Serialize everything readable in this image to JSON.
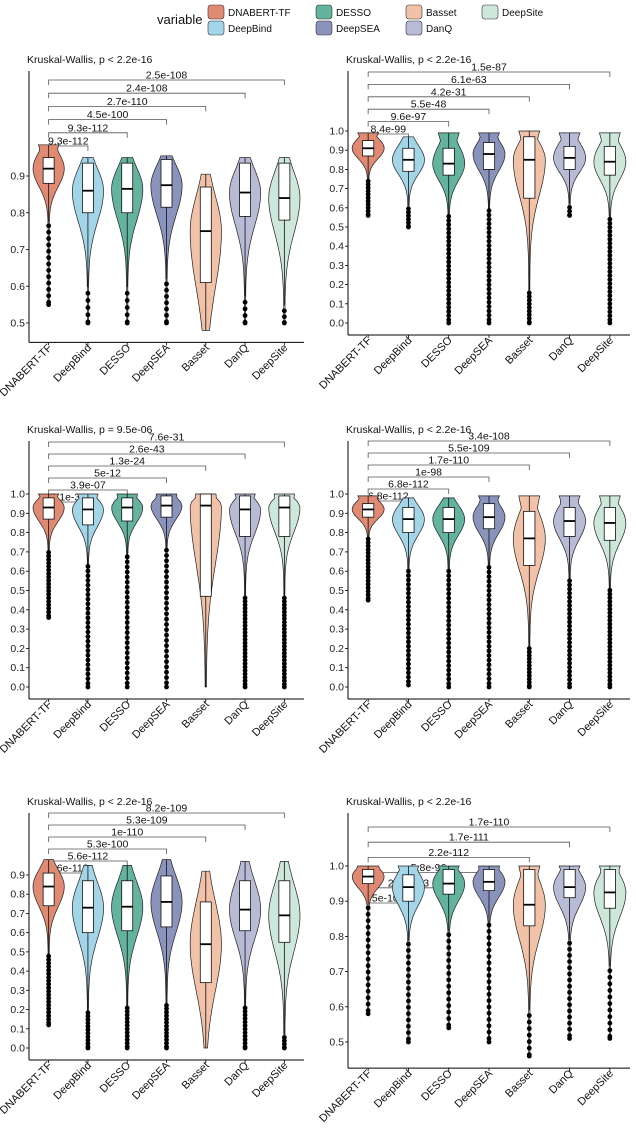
{
  "legend": {
    "title": "variable",
    "items": [
      {
        "name": "DNABERT-TF",
        "color": "#E08A73"
      },
      {
        "name": "DESSO",
        "color": "#63B39E"
      },
      {
        "name": "Basset",
        "color": "#F2C2A8"
      },
      {
        "name": "DeepSite",
        "color": "#CDE7DA"
      },
      {
        "name": "DeepBind",
        "color": "#A3D5E8"
      },
      {
        "name": "DeepSEA",
        "color": "#8A93BC"
      },
      {
        "name": "DanQ",
        "color": "#B8BBD6"
      }
    ]
  },
  "chart_data": [
    {
      "type": "violin",
      "title": "Kruskal-Wallis, p < 2.2e-16",
      "categories": [
        "DNABERT-TF",
        "DeepBind",
        "DESSO",
        "DeepSEA",
        "Basset",
        "DanQ",
        "DeepSite"
      ],
      "yticks": [
        "0.5",
        "0.6",
        "0.7",
        "0.8",
        "0.9"
      ],
      "ylim": [
        0.48,
        0.99
      ],
      "medians": [
        0.92,
        0.86,
        0.865,
        0.875,
        0.75,
        0.855,
        0.84
      ],
      "q1": [
        0.88,
        0.8,
        0.8,
        0.815,
        0.61,
        0.79,
        0.78
      ],
      "q3": [
        0.95,
        0.935,
        0.935,
        0.945,
        0.87,
        0.935,
        0.935
      ],
      "vmin": [
        0.55,
        0.5,
        0.5,
        0.5,
        0.48,
        0.5,
        0.5
      ],
      "vmax": [
        0.985,
        0.95,
        0.95,
        0.955,
        0.905,
        0.95,
        0.95
      ],
      "comparisons": [
        "9.3e-112",
        "9.3e-112",
        "4.5e-100",
        "2.7e-110",
        "2.4e-108",
        "2.5e-108"
      ]
    },
    {
      "type": "violin",
      "title": "Kruskal-Wallis, p < 2.2e-16",
      "categories": [
        "DNABERT-TF",
        "DeepBind",
        "DESSO",
        "DeepSEA",
        "Basset",
        "DanQ",
        "DeepSite"
      ],
      "yticks": [
        "0.0",
        "0.1",
        "0.2",
        "0.3",
        "0.4",
        "0.5",
        "0.6",
        "0.7",
        "0.8",
        "0.9",
        "1.0"
      ],
      "ylim": [
        0,
        1.0
      ],
      "medians": [
        0.91,
        0.85,
        0.83,
        0.88,
        0.85,
        0.86,
        0.84
      ],
      "q1": [
        0.87,
        0.79,
        0.77,
        0.8,
        0.65,
        0.8,
        0.77
      ],
      "q3": [
        0.95,
        0.91,
        0.91,
        0.94,
        0.97,
        0.92,
        0.92
      ],
      "vmin": [
        0.56,
        0.5,
        0.0,
        0.0,
        0.0,
        0.56,
        0.0
      ],
      "vmax": [
        0.99,
        0.97,
        0.99,
        0.99,
        1.0,
        0.99,
        0.99
      ],
      "comparisons": [
        "8.4e-99",
        "9.6e-97",
        "5.5e-48",
        "4.2e-31",
        "6.1e-63",
        "1.5e-87"
      ]
    },
    {
      "type": "violin",
      "title": "Kruskal-Wallis, p = 9.5e-06",
      "categories": [
        "DNABERT-TF",
        "DeepBind",
        "DESSO",
        "DeepSEA",
        "Basset",
        "DanQ",
        "DeepSite"
      ],
      "yticks": [
        "0.0",
        "0.1",
        "0.2",
        "0.3",
        "0.4",
        "0.5",
        "0.6",
        "0.7",
        "0.8",
        "0.9",
        "1.0"
      ],
      "ylim": [
        0,
        1.0
      ],
      "medians": [
        0.93,
        0.92,
        0.93,
        0.94,
        0.94,
        0.92,
        0.93
      ],
      "q1": [
        0.87,
        0.84,
        0.86,
        0.88,
        0.47,
        0.78,
        0.78
      ],
      "q3": [
        0.98,
        0.98,
        0.98,
        0.99,
        1.0,
        0.99,
        0.99
      ],
      "vmin": [
        0.36,
        0.0,
        0.0,
        0.0,
        0.0,
        0.0,
        0.0
      ],
      "vmax": [
        1.0,
        1.0,
        1.0,
        1.0,
        1.0,
        1.0,
        1.0
      ],
      "comparisons": [
        "3.1e-30",
        "3.9e-07",
        "5e-12",
        "1.3e-24",
        "2.6e-43",
        "7.6e-31"
      ]
    },
    {
      "type": "violin",
      "title": "Kruskal-Wallis, p < 2.2e-16",
      "categories": [
        "DNABERT-TF",
        "DeepBind",
        "DESSO",
        "DeepSEA",
        "Basset",
        "DanQ",
        "DeepSite"
      ],
      "yticks": [
        "0.0",
        "0.1",
        "0.2",
        "0.3",
        "0.4",
        "0.5",
        "0.6",
        "0.7",
        "0.8",
        "0.9",
        "1.0"
      ],
      "ylim": [
        0,
        1.0
      ],
      "medians": [
        0.92,
        0.87,
        0.87,
        0.88,
        0.77,
        0.86,
        0.85
      ],
      "q1": [
        0.88,
        0.8,
        0.8,
        0.82,
        0.63,
        0.78,
        0.76
      ],
      "q3": [
        0.95,
        0.93,
        0.93,
        0.95,
        0.91,
        0.93,
        0.93
      ],
      "vmin": [
        0.45,
        0.01,
        0.0,
        0.0,
        0.0,
        0.0,
        0.0
      ],
      "vmax": [
        0.99,
        0.98,
        0.98,
        0.99,
        0.99,
        0.99,
        0.99
      ],
      "comparisons": [
        "6.8e-112",
        "6.8e-112",
        "1e-98",
        "1.7e-110",
        "5.5e-109",
        "3.4e-108"
      ]
    },
    {
      "type": "violin",
      "title": "Kruskal-Wallis, p < 2.2e-16",
      "categories": [
        "DNABERT-TF",
        "DeepBind",
        "DESSO",
        "DeepSEA",
        "Basset",
        "DanQ",
        "DeepSite"
      ],
      "yticks": [
        "0.0",
        "0.1",
        "0.2",
        "0.3",
        "0.4",
        "0.5",
        "0.6",
        "0.7",
        "0.8",
        "0.9"
      ],
      "ylim": [
        0,
        0.98
      ],
      "medians": [
        0.84,
        0.73,
        0.735,
        0.76,
        0.54,
        0.72,
        0.69
      ],
      "q1": [
        0.74,
        0.6,
        0.61,
        0.63,
        0.34,
        0.61,
        0.55
      ],
      "q3": [
        0.91,
        0.87,
        0.87,
        0.895,
        0.76,
        0.87,
        0.87
      ],
      "vmin": [
        0.12,
        0.0,
        0.0,
        0.0,
        0.0,
        0.0,
        0.0
      ],
      "vmax": [
        0.98,
        0.95,
        0.95,
        0.98,
        0.92,
        0.97,
        0.97
      ],
      "comparisons": [
        "5.6e-112",
        "5.6e-112",
        "5.3e-100",
        "1e-110",
        "5.3e-109",
        "8.2e-109"
      ]
    },
    {
      "type": "violin",
      "title": "Kruskal-Wallis, p < 2.2e-16",
      "categories": [
        "DNABERT-TF",
        "DeepBind",
        "DESSO",
        "DeepSEA",
        "Basset",
        "DanQ",
        "DeepSite"
      ],
      "yticks": [
        "0.5",
        "0.6",
        "0.7",
        "0.8",
        "0.9",
        "1.0"
      ],
      "ylim": [
        0.46,
        1.0
      ],
      "medians": [
        0.97,
        0.94,
        0.95,
        0.955,
        0.89,
        0.94,
        0.925
      ],
      "q1": [
        0.95,
        0.9,
        0.92,
        0.93,
        0.83,
        0.91,
        0.88
      ],
      "q3": [
        0.99,
        0.975,
        0.99,
        0.99,
        0.99,
        0.99,
        0.99
      ],
      "vmin": [
        0.58,
        0.5,
        0.54,
        0.5,
        0.46,
        0.51,
        0.51
      ],
      "vmax": [
        1.0,
        1.0,
        1.0,
        1.0,
        1.0,
        1.0,
        1.0
      ],
      "comparisons": [
        "5e-109",
        "2.1e-103",
        "5.8e-96",
        "2.2e-112",
        "1.7e-111",
        "1.7e-110"
      ]
    }
  ]
}
